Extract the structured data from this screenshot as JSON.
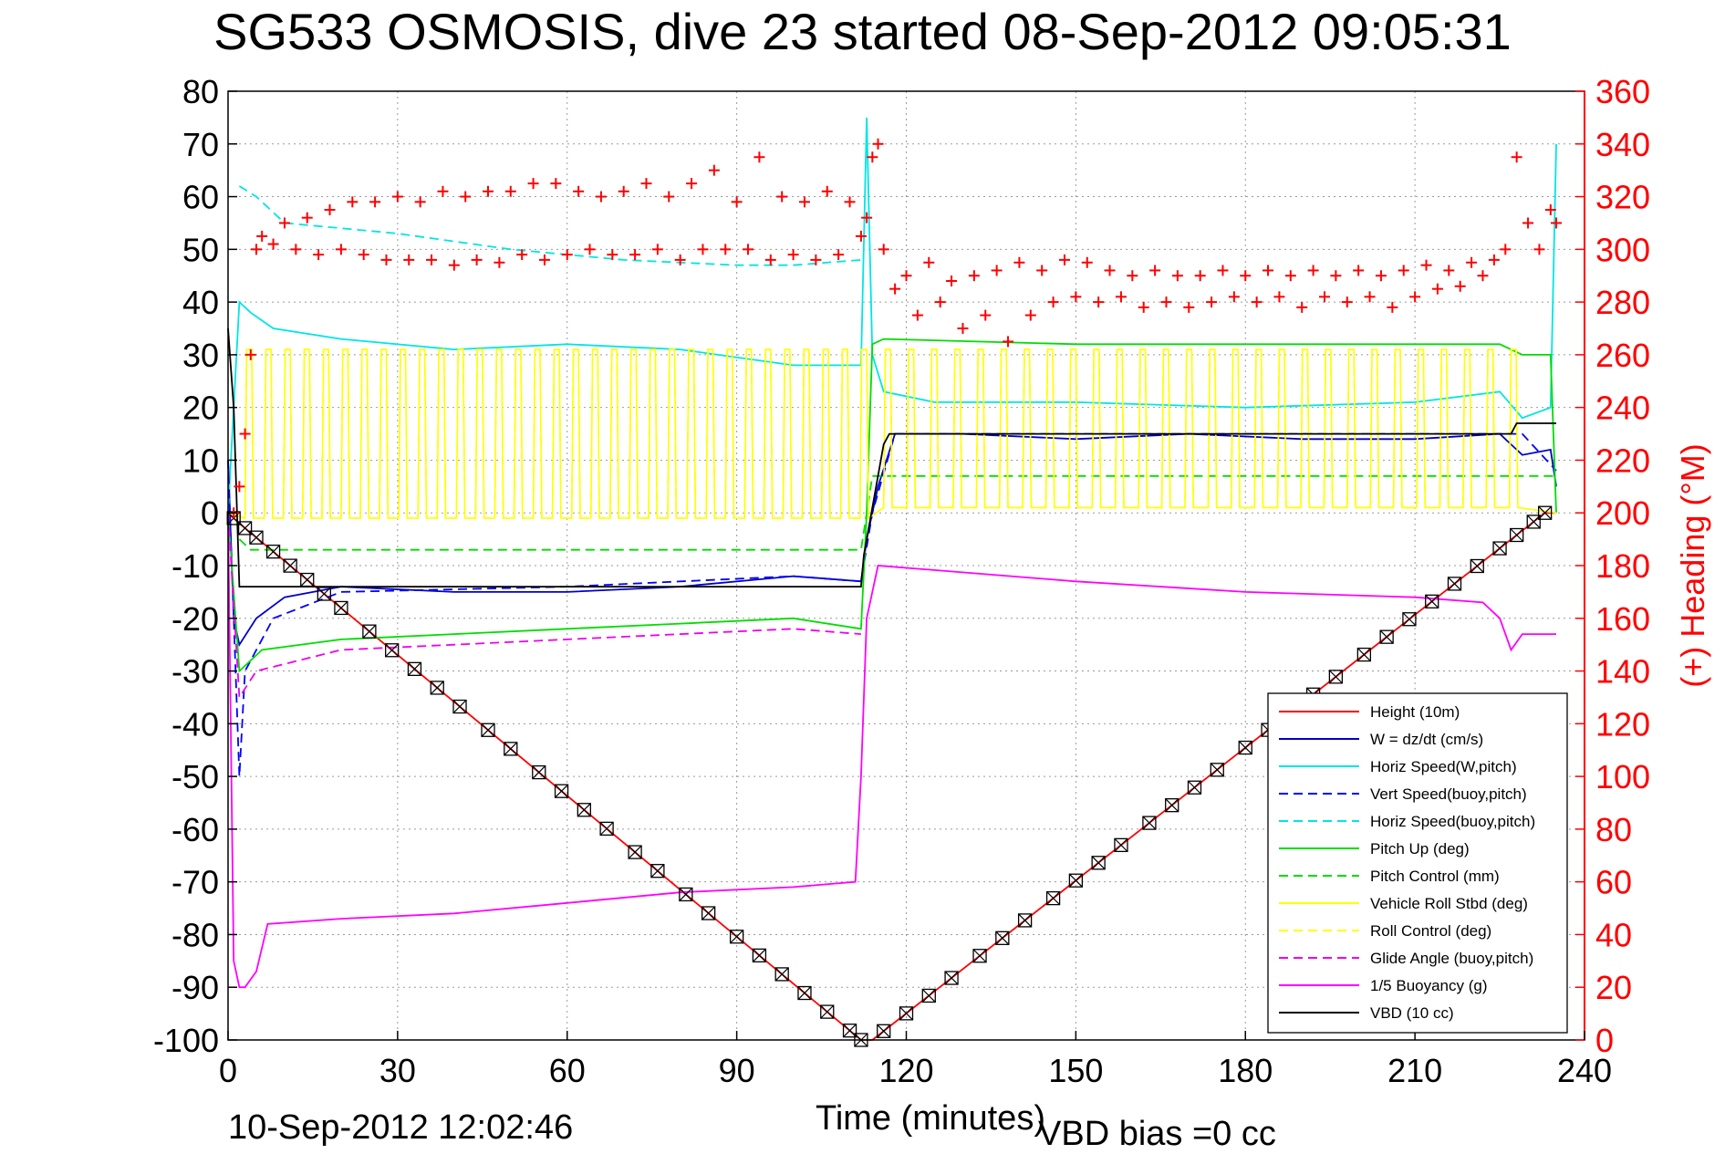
{
  "figure": {
    "title": "SG533 OSMOSIS, dive 23 started 08-Sep-2012 09:05:31",
    "timestamp": "10-Sep-2012 12:02:46",
    "vbd_bias": "VBD bias =0 cc"
  },
  "chart_data": {
    "type": "line",
    "xlabel": "Time (minutes)",
    "ylabel": "",
    "ylabel_right": "(+) Heading (°M)",
    "xlim": [
      0,
      240
    ],
    "ylim": [
      -100,
      80
    ],
    "ylim_right": [
      0,
      360
    ],
    "xticks": [
      "0",
      "30",
      "60",
      "90",
      "120",
      "150",
      "180",
      "210",
      "240"
    ],
    "yticks": [
      "80",
      "70",
      "60",
      "50",
      "40",
      "30",
      "20",
      "10",
      "0",
      "-10",
      "-20",
      "-30",
      "-40",
      "-50",
      "-60",
      "-70",
      "-80",
      "-90",
      "-100"
    ],
    "yticks_right": [
      "360",
      "340",
      "320",
      "300",
      "280",
      "260",
      "240",
      "220",
      "200",
      "180",
      "160",
      "140",
      "120",
      "100",
      "80",
      "60",
      "40",
      "20",
      "0"
    ],
    "grid": true,
    "legend_position": "bottom-right",
    "series": [
      {
        "name": "Height (10m)",
        "color": "#ff0000",
        "style": "solid",
        "x": [
          0,
          2,
          112,
          114,
          233,
          235
        ],
        "y": [
          0,
          -2,
          -100,
          -100,
          0,
          0
        ]
      },
      {
        "name": "W = dz/dt (cm/s)",
        "color": "#0000cc",
        "style": "solid",
        "x": [
          0,
          1,
          2,
          5,
          10,
          20,
          40,
          60,
          80,
          100,
          112,
          113,
          115,
          118,
          130,
          150,
          170,
          190,
          210,
          225,
          229,
          234,
          235
        ],
        "y": [
          10,
          -20,
          -25,
          -20,
          -16,
          -14,
          -15,
          -15,
          -14,
          -12,
          -13,
          -5,
          5,
          15,
          15,
          14,
          15,
          14,
          14,
          15,
          11,
          12,
          5
        ]
      },
      {
        "name": "Horiz Speed(W,pitch)",
        "color": "#00e5e5",
        "style": "solid",
        "x": [
          0,
          2,
          4,
          8,
          20,
          40,
          60,
          80,
          100,
          112,
          113,
          114,
          116,
          125,
          150,
          180,
          210,
          225,
          229,
          234,
          235
        ],
        "y": [
          0,
          40,
          38,
          35,
          33,
          31,
          32,
          31,
          28,
          28,
          75,
          30,
          23,
          21,
          21,
          20,
          21,
          23,
          18,
          20,
          70
        ]
      },
      {
        "name": "Vert Speed(buoy,pitch)",
        "color": "#0000ff",
        "style": "dashed",
        "x": [
          0,
          2,
          3,
          8,
          20,
          60,
          100,
          112,
          114,
          118,
          150,
          200,
          229,
          235
        ],
        "y": [
          10,
          -50,
          -30,
          -20,
          -15,
          -14,
          -12,
          -13,
          0,
          15,
          15,
          15,
          15,
          8
        ]
      },
      {
        "name": "Horiz Speed(buoy,pitch)",
        "color": "#00e5e5",
        "style": "dashed",
        "x": [
          2,
          5,
          10,
          30,
          50,
          70,
          90,
          100,
          112
        ],
        "y": [
          62,
          60,
          55,
          53,
          50,
          48,
          47,
          47,
          48
        ]
      },
      {
        "name": "Pitch Up (deg)",
        "color": "#00dd00",
        "style": "solid",
        "x": [
          0,
          2,
          6,
          20,
          40,
          60,
          80,
          100,
          112,
          113,
          114,
          116,
          150,
          200,
          225,
          229,
          234,
          235
        ],
        "y": [
          0,
          -30,
          -26,
          -24,
          -23,
          -22,
          -21,
          -20,
          -22,
          0,
          32,
          33,
          32,
          32,
          32,
          30,
          30,
          0
        ]
      },
      {
        "name": "Pitch Control (mm)",
        "color": "#00dd00",
        "style": "dashed",
        "x": [
          2,
          4,
          112,
          114,
          235
        ],
        "y": [
          -5,
          -7,
          -7,
          7,
          7
        ]
      },
      {
        "name": "Vehicle Roll Stbd (deg)",
        "color": "#ffff00",
        "style": "solid",
        "x": [
          0,
          235
        ],
        "y": [
          0,
          0
        ]
      },
      {
        "name": "Roll Control (deg)",
        "color": "#ffff00",
        "style": "dashed",
        "x": [
          0,
          235
        ],
        "y": [
          0,
          0
        ]
      },
      {
        "name": "Glide Angle (buoy,pitch)",
        "color": "#ee00ee",
        "style": "dashed",
        "x": [
          0,
          2,
          5,
          20,
          40,
          60,
          80,
          100,
          112
        ],
        "y": [
          0,
          -35,
          -30,
          -26,
          -25,
          -24,
          -23,
          -22,
          -23
        ]
      },
      {
        "name": "1/5 Buoyancy (g)",
        "color": "#ff00ff",
        "style": "solid",
        "x": [
          0,
          1,
          2,
          3,
          5,
          7,
          20,
          40,
          60,
          80,
          100,
          111,
          112,
          113,
          115,
          150,
          180,
          210,
          222,
          225,
          227,
          229,
          233,
          235
        ],
        "y": [
          0,
          -85,
          -90,
          -90,
          -87,
          -78,
          -77,
          -76,
          -74,
          -72,
          -71,
          -70,
          -50,
          -20,
          -10,
          -13,
          -15,
          -16,
          -17,
          -20,
          -26,
          -23,
          -23,
          -23
        ]
      },
      {
        "name": "VBD (10 cc)",
        "color": "#000000",
        "style": "solid",
        "x": [
          0,
          1,
          2,
          112,
          112.5,
          113,
          116,
          117,
          150,
          200,
          227,
          228,
          235
        ],
        "y": [
          35,
          20,
          -14,
          -14,
          -8,
          -5,
          13,
          15,
          15,
          15,
          15,
          17,
          17
        ]
      }
    ],
    "heading": {
      "name": "(+) Heading (°M)",
      "color": "#ff0000",
      "marker": "+",
      "x": [
        1,
        2,
        3,
        4,
        5,
        6,
        8,
        10,
        12,
        14,
        16,
        18,
        20,
        22,
        24,
        26,
        28,
        30,
        32,
        34,
        36,
        38,
        40,
        42,
        44,
        46,
        48,
        50,
        52,
        54,
        56,
        58,
        60,
        62,
        64,
        66,
        68,
        70,
        72,
        74,
        76,
        78,
        80,
        82,
        84,
        86,
        88,
        90,
        92,
        94,
        96,
        98,
        100,
        102,
        104,
        106,
        108,
        110,
        112,
        113,
        114,
        115,
        116,
        118,
        120,
        122,
        124,
        126,
        128,
        130,
        132,
        134,
        136,
        138,
        140,
        142,
        144,
        146,
        148,
        150,
        152,
        154,
        156,
        158,
        160,
        162,
        164,
        166,
        168,
        170,
        172,
        174,
        176,
        178,
        180,
        182,
        184,
        186,
        188,
        190,
        192,
        194,
        196,
        198,
        200,
        202,
        204,
        206,
        208,
        210,
        212,
        214,
        216,
        218,
        220,
        222,
        224,
        226,
        228,
        230,
        232,
        234,
        235
      ],
      "y": [
        200,
        210,
        230,
        260,
        300,
        305,
        302,
        310,
        300,
        312,
        298,
        315,
        300,
        318,
        298,
        318,
        296,
        320,
        296,
        318,
        296,
        322,
        294,
        320,
        296,
        322,
        295,
        322,
        298,
        325,
        296,
        325,
        298,
        322,
        300,
        320,
        298,
        322,
        298,
        325,
        300,
        320,
        296,
        325,
        300,
        330,
        300,
        318,
        300,
        335,
        296,
        320,
        298,
        318,
        296,
        322,
        298,
        318,
        305,
        312,
        335,
        340,
        300,
        285,
        290,
        275,
        295,
        280,
        288,
        270,
        290,
        275,
        292,
        265,
        295,
        275,
        292,
        280,
        296,
        282,
        295,
        280,
        292,
        282,
        290,
        278,
        292,
        280,
        290,
        278,
        290,
        280,
        292,
        282,
        290,
        280,
        292,
        282,
        290,
        278,
        292,
        282,
        290,
        280,
        292,
        282,
        290,
        278,
        292,
        282,
        294,
        285,
        292,
        286,
        295,
        290,
        296,
        300,
        335,
        310,
        300,
        315,
        310
      ]
    },
    "depth_markers": {
      "series": "Height (10m)",
      "marker": "⊠",
      "color": "#000000",
      "x": [
        1,
        3,
        5,
        8,
        11,
        14,
        17,
        20,
        25,
        29,
        33,
        37,
        41,
        46,
        50,
        55,
        59,
        63,
        67,
        72,
        76,
        81,
        85,
        90,
        94,
        98,
        102,
        106,
        110,
        112,
        116,
        120,
        124,
        128,
        133,
        137,
        141,
        146,
        150,
        154,
        158,
        163,
        167,
        171,
        175,
        180,
        184,
        188,
        192,
        196,
        201,
        205,
        209,
        213,
        217,
        221,
        225,
        228,
        231,
        233
      ]
    }
  },
  "legend": {
    "entries": [
      "Height (10m)",
      "W = dz/dt (cm/s)",
      "Horiz Speed(W,pitch)",
      "Vert Speed(buoy,pitch)",
      "Horiz Speed(buoy,pitch)",
      "Pitch Up (deg)",
      "Pitch Control (mm)",
      "Vehicle Roll Stbd (deg)",
      "Roll Control (deg)",
      "Glide Angle (buoy,pitch)",
      "1/5 Buoyancy (g)",
      "VBD (10 cc)"
    ]
  }
}
